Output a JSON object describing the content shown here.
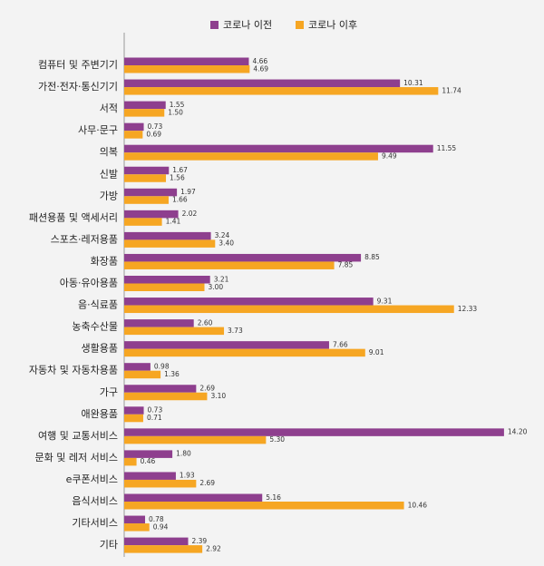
{
  "chart_data": {
    "type": "bar",
    "orientation": "horizontal",
    "categories": [
      "컴퓨터 및 주변기기",
      "가전·전자·통신기기",
      "서적",
      "사무·문구",
      "의복",
      "신발",
      "가방",
      "패션용품 및 액세서리",
      "스포츠·레저용품",
      "화장품",
      "아동·유아용품",
      "음·식료품",
      "농축수산물",
      "생활용품",
      "자동차 및 자동차용품",
      "가구",
      "애완용품",
      "여행 및 교통서비스",
      "문화 및 레저 서비스",
      "e쿠폰서비스",
      "음식서비스",
      "기타서비스",
      "기타"
    ],
    "series": [
      {
        "name": "코로나 이전",
        "color": "#8e3f8e",
        "values": [
          4.66,
          10.31,
          1.55,
          0.73,
          11.55,
          1.67,
          1.97,
          2.02,
          3.24,
          8.85,
          3.21,
          9.31,
          2.6,
          7.66,
          0.98,
          2.69,
          0.73,
          14.2,
          1.8,
          1.93,
          5.16,
          0.78,
          2.39
        ],
        "value_labels": [
          "4.66",
          "10.31",
          "1.55",
          "0.73",
          "11.55",
          "1.67",
          "1.97",
          "2.02",
          "3.24",
          "8.85",
          "3.21",
          "9.31",
          "2.60",
          "7.66",
          "0.98",
          "2.69",
          "0.73",
          "14.20",
          "1.80",
          "1.93",
          "5.16",
          "0.78",
          "2.39"
        ]
      },
      {
        "name": "코로나 이후",
        "color": "#f6a623",
        "values": [
          4.69,
          11.74,
          1.5,
          0.69,
          9.49,
          1.56,
          1.66,
          1.41,
          3.4,
          7.85,
          3.0,
          12.33,
          3.73,
          9.01,
          1.36,
          3.1,
          0.71,
          5.3,
          0.46,
          2.69,
          10.46,
          0.94,
          2.92
        ],
        "value_labels": [
          "4.69",
          "11.74",
          "1.50",
          "0.69",
          "9.49",
          "1.56",
          "1.66",
          "1.41",
          "3.40",
          "7.85",
          "3.00",
          "12.33",
          "3.73",
          "9.01",
          "1.36",
          "3.10",
          "0.71",
          "5.30",
          "0.46",
          "2.69",
          "10.46",
          "0.94",
          "2.92"
        ]
      }
    ]
  }
}
